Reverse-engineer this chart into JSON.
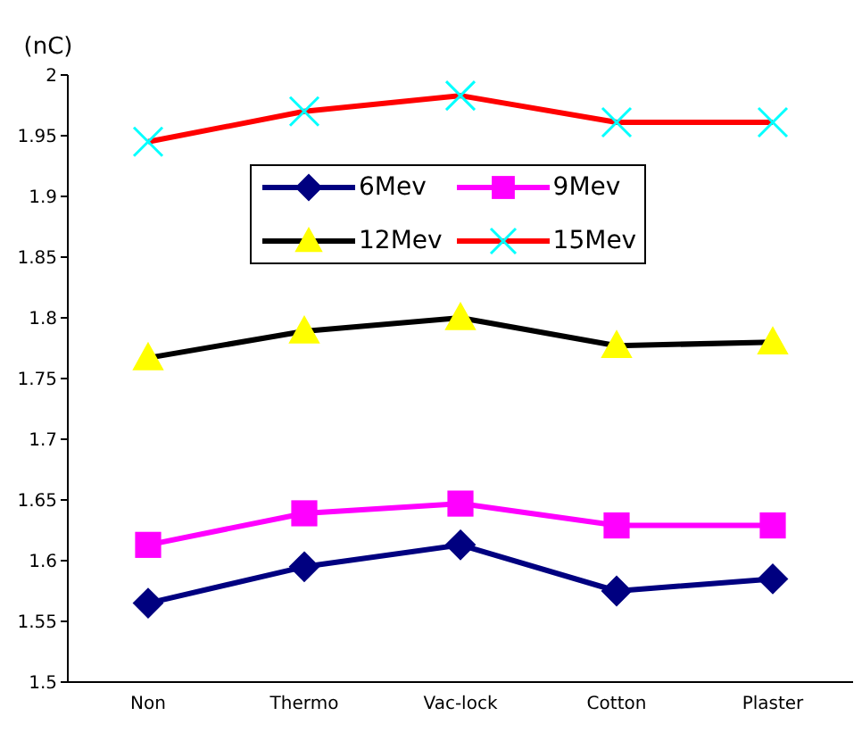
{
  "chart_data": {
    "type": "line",
    "ylabel": "(nC)",
    "categories": [
      "Non",
      "Thermo",
      "Vac-lock",
      "Cotton",
      "Plaster"
    ],
    "series": [
      {
        "name": "6Mev",
        "color": "#000080",
        "marker": "diamond",
        "colors": [
          "#000080",
          "#000080",
          "#000080",
          "#000080",
          "#000080"
        ],
        "values": [
          1.565,
          1.595,
          1.613,
          1.575,
          1.585
        ]
      },
      {
        "name": "9Mev",
        "color": "#ff00ff",
        "marker": "square",
        "colors": [
          "#ff00ff",
          "#ff00ff",
          "#ff00ff",
          "#ff00ff",
          "#ff00ff"
        ],
        "values": [
          1.613,
          1.639,
          1.647,
          1.629,
          1.629
        ]
      },
      {
        "name": "12Mev",
        "color": "#000000",
        "marker": "triangle",
        "colors": [
          "#ffff00",
          "#ffff00",
          "#ffff00",
          "#ffff00",
          "#ffff00"
        ],
        "values": [
          1.767,
          1.789,
          1.8,
          1.777,
          1.78
        ]
      },
      {
        "name": "15Mev",
        "color": "#ff0000",
        "marker": "cross",
        "colors": [
          "#00ffff",
          "#00ffff",
          "#00ffff",
          "#00ffff",
          "#00ffff"
        ],
        "values": [
          1.945,
          1.97,
          1.983,
          1.961,
          1.961
        ]
      }
    ],
    "ylim": [
      1.5,
      2
    ],
    "yticks": [
      1.5,
      1.55,
      1.6,
      1.65,
      1.7,
      1.75,
      1.8,
      1.85,
      1.9,
      1.95,
      2
    ],
    "grid": false,
    "legend": "top"
  }
}
